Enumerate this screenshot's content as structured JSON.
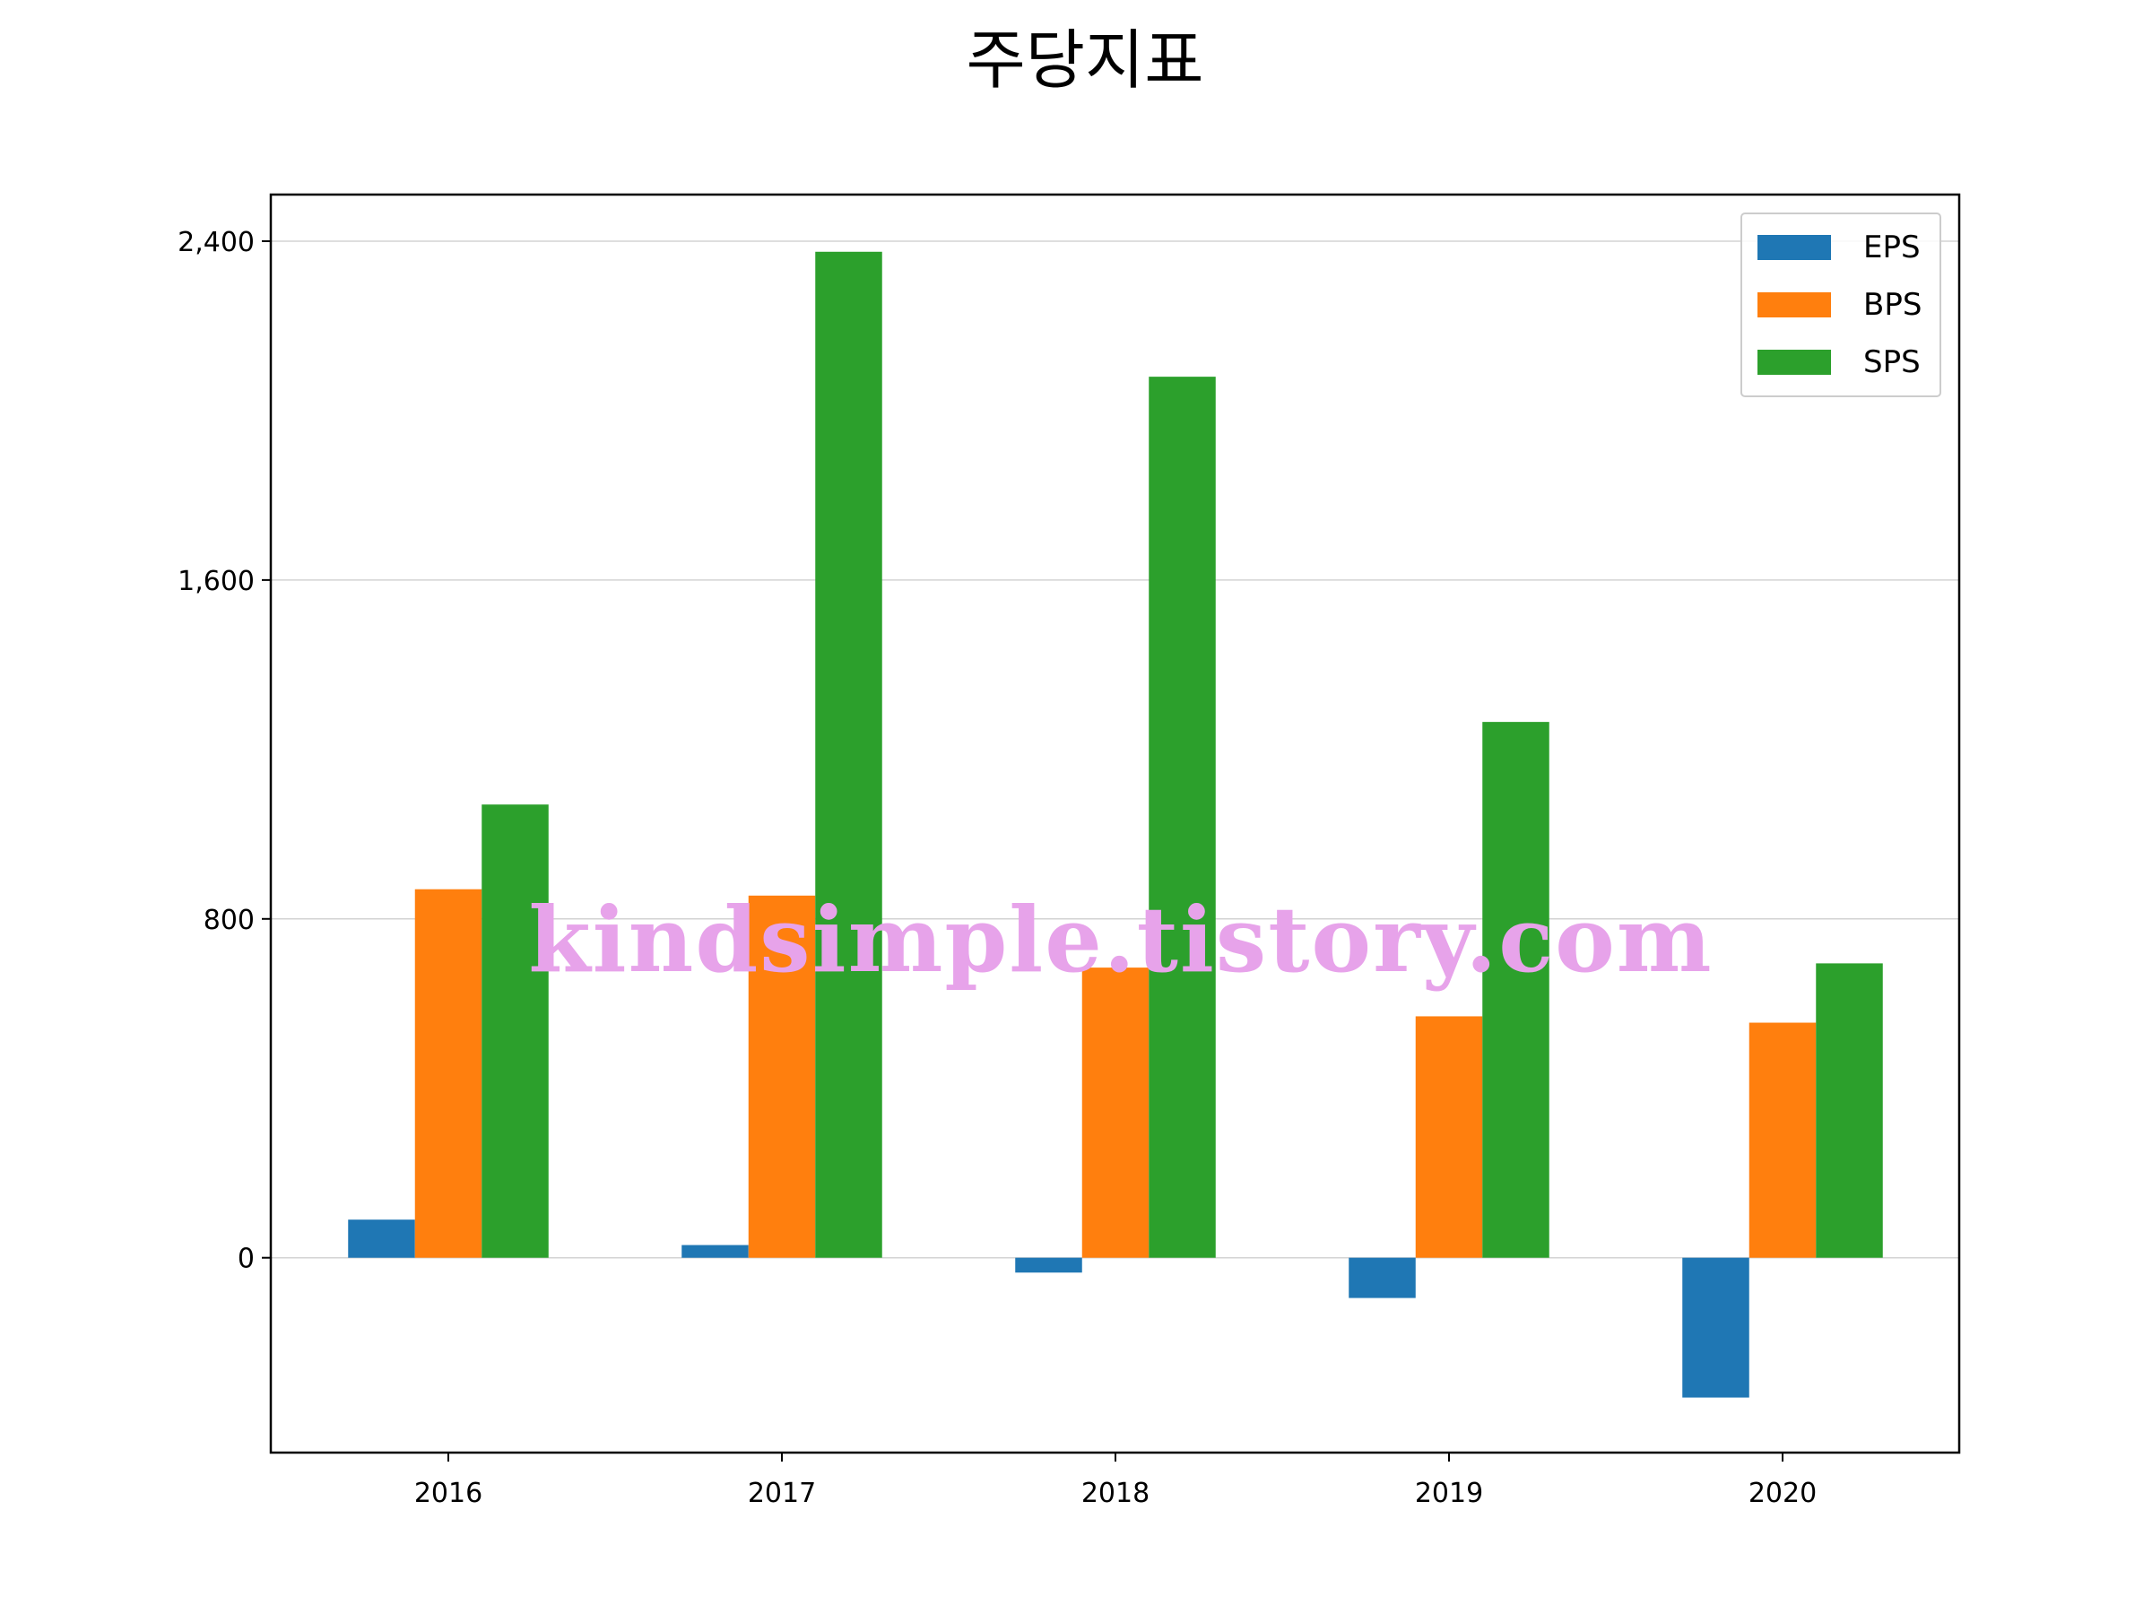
{
  "chart_data": {
    "type": "bar",
    "title": "주당지표",
    "xlabel": "",
    "ylabel": "",
    "categories": [
      "2016",
      "2017",
      "2018",
      "2019",
      "2020"
    ],
    "series": [
      {
        "name": "EPS",
        "color": "#1f77b4",
        "values": [
          90,
          30,
          -35,
          -95,
          -330
        ]
      },
      {
        "name": "BPS",
        "color": "#ff7f0e",
        "values": [
          870,
          855,
          685,
          570,
          555
        ]
      },
      {
        "name": "SPS",
        "color": "#2ca02c",
        "values": [
          1070,
          2375,
          2080,
          1265,
          695
        ]
      }
    ],
    "ylim": [
      -460,
      2510
    ],
    "yticks": [
      0,
      800,
      1600,
      2400
    ],
    "ytick_labels": [
      "0",
      "800",
      "1,600",
      "2,400"
    ],
    "grid": "y",
    "legend": "top-right"
  },
  "watermark": "kindsimple.tistory.com"
}
